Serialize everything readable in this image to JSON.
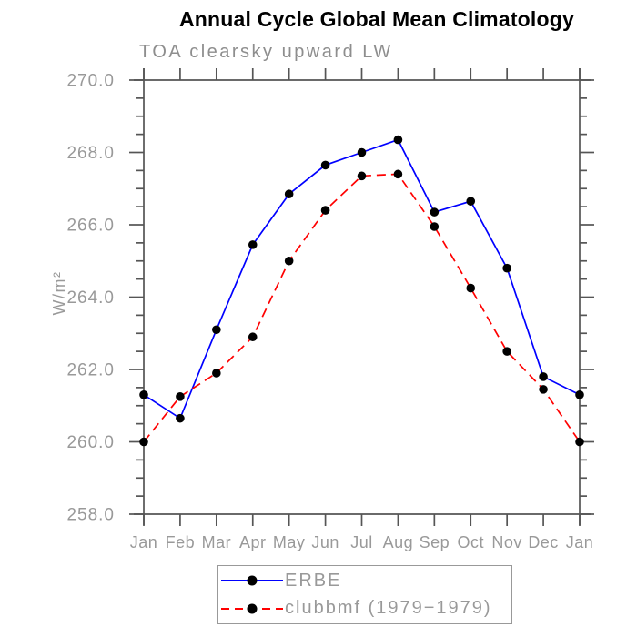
{
  "chart_data": {
    "type": "line",
    "title": "Annual Cycle Global Mean Climatology",
    "subtitle": "TOA clearsky upward LW",
    "xlabel": "",
    "ylabel": "W/m²",
    "x_categories": [
      "Jan",
      "Feb",
      "Mar",
      "Apr",
      "May",
      "Jun",
      "Jul",
      "Aug",
      "Sep",
      "Oct",
      "Nov",
      "Dec",
      "Jan"
    ],
    "ylim": [
      258.0,
      270.0
    ],
    "ytick_major_step": 2.0,
    "ytick_minor_step": 0.5,
    "ytick_labels": [
      "258.0",
      "260.0",
      "262.0",
      "264.0",
      "266.0",
      "268.0",
      "270.0"
    ],
    "grid": "off",
    "legend_position": "bottom-center",
    "series": [
      {
        "name": "ERBE",
        "style": "solid",
        "color": "#0000ff",
        "marker": "filled-circle",
        "marker_color": "#000000",
        "values": [
          261.3,
          260.65,
          263.1,
          265.45,
          266.85,
          267.65,
          268.0,
          268.35,
          266.35,
          266.65,
          264.8,
          261.8,
          261.3
        ]
      },
      {
        "name": "clubbmf (1979−1979)",
        "style": "dashed",
        "color": "#ff0000",
        "marker": "filled-circle",
        "marker_color": "#000000",
        "values": [
          260.0,
          261.25,
          261.9,
          262.9,
          265.0,
          266.4,
          267.35,
          267.4,
          265.95,
          264.25,
          262.5,
          261.45,
          260.0
        ]
      }
    ],
    "colors": {
      "axis": "#555555",
      "tick_label": "#999999",
      "title": "#000000",
      "subtitle": "#8e8e8e",
      "legend_border": "#999999",
      "series_erbe": "#0000ff",
      "series_clubbmf": "#ff0000",
      "marker": "#000000"
    }
  }
}
